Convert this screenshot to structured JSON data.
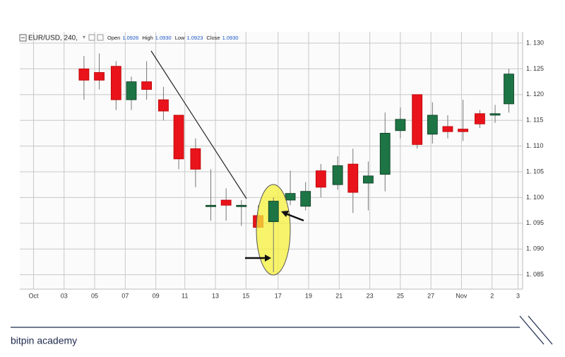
{
  "header": {
    "symbol": "EUR/USD, 240,",
    "ohlc": [
      {
        "label": "Open",
        "value": "1.0926"
      },
      {
        "label": "High",
        "value": "1.0930"
      },
      {
        "label": "Low",
        "value": "1.0923"
      },
      {
        "label": "Close",
        "value": "1.0930"
      }
    ]
  },
  "chart_data": {
    "type": "candlestick",
    "x": [
      3.3,
      4.3,
      5.4,
      6.4,
      7.4,
      8.5,
      9.5,
      10.6,
      11.6,
      12.6,
      13.6,
      14.7,
      15.7,
      16.8,
      17.8,
      18.8,
      19.9,
      20.9,
      21.9,
      23.0,
      24.0,
      25.1,
      26.1,
      27.1,
      28.1,
      29.2,
      30.2,
      31.1
    ],
    "open": [
      1.125,
      1.1243,
      1.1255,
      1.119,
      1.1225,
      1.119,
      1.116,
      1.1095,
      1.0985,
      1.0995,
      1.0985,
      1.0965,
      1.0953,
      1.0995,
      1.0983,
      1.1052,
      1.1025,
      1.1065,
      1.1028,
      1.1045,
      1.113,
      1.12,
      1.1123,
      1.1138,
      1.1133,
      1.1163,
      1.116,
      1.1182
    ],
    "high": [
      1.1275,
      1.128,
      1.1265,
      1.1235,
      1.1265,
      1.1215,
      1.116,
      1.1115,
      1.1055,
      1.1018,
      1.0995,
      1.0985,
      1.1,
      1.1052,
      1.103,
      1.1065,
      1.108,
      1.1095,
      1.107,
      1.1165,
      1.1175,
      1.12,
      1.1185,
      1.116,
      1.119,
      1.117,
      1.118,
      1.125
    ],
    "low": [
      1.119,
      1.121,
      1.117,
      1.117,
      1.119,
      1.115,
      1.1055,
      1.102,
      1.0955,
      1.0955,
      1.0945,
      1.094,
      1.0855,
      1.0985,
      1.0975,
      1.1,
      1.1015,
      1.097,
      1.0975,
      1.1012,
      1.1115,
      1.1095,
      1.1105,
      1.1115,
      1.111,
      1.1135,
      1.1145,
      1.1165
    ],
    "close": [
      1.1228,
      1.1228,
      1.119,
      1.1225,
      1.121,
      1.1168,
      1.1075,
      1.1055,
      1.0985,
      1.0985,
      1.0985,
      1.0942,
      1.0993,
      1.1008,
      1.1012,
      1.102,
      1.1062,
      1.101,
      1.1042,
      1.1125,
      1.1152,
      1.1103,
      1.116,
      1.1128,
      1.1128,
      1.1143,
      1.1163,
      1.124
    ],
    "up_color": "#1d7444",
    "down_color": "#e8131b",
    "xlim": [
      -0.9,
      32.0
    ],
    "xticks": [
      {
        "value": 0,
        "label": "Oct"
      },
      {
        "value": 2,
        "label": "03"
      },
      {
        "value": 4,
        "label": "05"
      },
      {
        "value": 6,
        "label": "07"
      },
      {
        "value": 8,
        "label": "09"
      },
      {
        "value": 9.9,
        "label": "11"
      },
      {
        "value": 11.9,
        "label": "13"
      },
      {
        "value": 13.9,
        "label": "15"
      },
      {
        "value": 16,
        "label": "17"
      },
      {
        "value": 18,
        "label": "19"
      },
      {
        "value": 20,
        "label": "21"
      },
      {
        "value": 22,
        "label": "23"
      },
      {
        "value": 24,
        "label": "25"
      },
      {
        "value": 26,
        "label": "27"
      },
      {
        "value": 28,
        "label": "Nov"
      },
      {
        "value": 30,
        "label": "2"
      },
      {
        "value": 31.7,
        "label": "3"
      }
    ],
    "ylim": [
      1.0822,
      1.1322
    ],
    "yticks": [
      {
        "value": 1.085,
        "label": "1. 085"
      },
      {
        "value": 1.09,
        "label": "1. 090"
      },
      {
        "value": 1.095,
        "label": "1. 095"
      },
      {
        "value": 1.1,
        "label": "1. 100"
      },
      {
        "value": 1.105,
        "label": "1. 105"
      },
      {
        "value": 1.11,
        "label": "1. 110"
      },
      {
        "value": 1.115,
        "label": "1. 115"
      },
      {
        "value": 1.12,
        "label": "1. 120"
      },
      {
        "value": 1.125,
        "label": "1. 125"
      },
      {
        "value": 1.13,
        "label": "1. 130"
      }
    ],
    "grid": true
  },
  "footer": {
    "brand": "bitpin academy"
  }
}
